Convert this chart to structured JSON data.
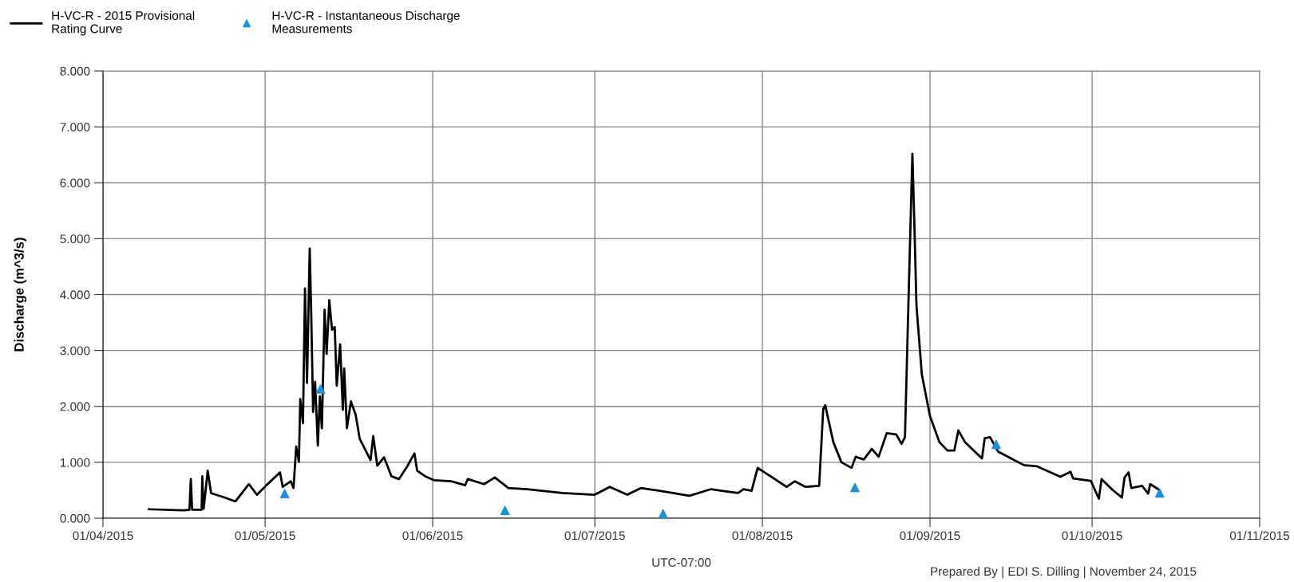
{
  "chart_data": {
    "type": "line",
    "ylabel": "Discharge (m^3/s)",
    "xlabel": "UTC-07:00",
    "legend": "top left",
    "grid": true,
    "annotations": [
      "Prepared By | EDI S. Dilling | November 24, 2015"
    ],
    "xlim": [
      "2015-04-01",
      "2015-11-01"
    ],
    "xticks": [
      {
        "value": "2015-04-01",
        "label": "01/04/2015"
      },
      {
        "value": "2015-05-01",
        "label": "01/05/2015"
      },
      {
        "value": "2015-06-01",
        "label": "01/06/2015"
      },
      {
        "value": "2015-07-01",
        "label": "01/07/2015"
      },
      {
        "value": "2015-08-01",
        "label": "01/08/2015"
      },
      {
        "value": "2015-09-01",
        "label": "01/09/2015"
      },
      {
        "value": "2015-10-01",
        "label": "01/10/2015"
      },
      {
        "value": "2015-11-01",
        "label": "01/11/2015"
      }
    ],
    "ylim": [
      0,
      8
    ],
    "yticks": [
      {
        "value": 0,
        "label": "0.000"
      },
      {
        "value": 1,
        "label": "1.000"
      },
      {
        "value": 2,
        "label": "2.000"
      },
      {
        "value": 3,
        "label": "3.000"
      },
      {
        "value": 4,
        "label": "4.000"
      },
      {
        "value": 5,
        "label": "5.000"
      },
      {
        "value": 6,
        "label": "6.000"
      },
      {
        "value": 7,
        "label": "7.000"
      },
      {
        "value": 8,
        "label": "8.000"
      }
    ],
    "series": [
      {
        "name": "H-VC-R - 2015 Provisional Rating Curve",
        "color": "#000000",
        "marker": "none",
        "line_style": "solid",
        "x": [
          "2015-04-09T12:00",
          "2015-04-16T00:00",
          "2015-04-17T00:00",
          "2015-04-17T06:00",
          "2015-04-17T12:00",
          "2015-04-19T06:00",
          "2015-04-19T09:00",
          "2015-04-19T15:00",
          "2015-04-20T00:00",
          "2015-04-20T09:00",
          "2015-04-21T00:00",
          "2015-04-23T12:00",
          "2015-04-25T12:00",
          "2015-04-28T00:00",
          "2015-04-29T12:00",
          "2015-05-01T06:00",
          "2015-05-03T18:00",
          "2015-05-04T06:00",
          "2015-05-05T18:00",
          "2015-05-06T06:00",
          "2015-05-06T18:00",
          "2015-05-07T06:00",
          "2015-05-07T12:00",
          "2015-05-08T00:00",
          "2015-05-08T09:00",
          "2015-05-08T18:00",
          "2015-05-09T06:00",
          "2015-05-09T12:00",
          "2015-05-09T21:00",
          "2015-05-10T06:00",
          "2015-05-10T18:00",
          "2015-05-11T03:00",
          "2015-05-11T12:00",
          "2015-05-12T00:00",
          "2015-05-12T09:00",
          "2015-05-12T21:00",
          "2015-05-13T09:00",
          "2015-05-13T21:00",
          "2015-05-14T06:00",
          "2015-05-14T21:00",
          "2015-05-15T09:00",
          "2015-05-15T15:00",
          "2015-05-16T03:00",
          "2015-05-16T21:00",
          "2015-05-17T18:00",
          "2015-05-18T12:00",
          "2015-05-20T12:00",
          "2015-05-21T00:00",
          "2015-05-21T18:00",
          "2015-05-23T00:00",
          "2015-05-24T09:00",
          "2015-05-25T18:00",
          "2015-05-27T06:00",
          "2015-05-28T15:00",
          "2015-05-29T03:00",
          "2015-05-30T15:00",
          "2015-06-01T06:00",
          "2015-06-04T12:00",
          "2015-06-07T00:00",
          "2015-06-07T12:00",
          "2015-06-10T12:00",
          "2015-06-12T12:00",
          "2015-06-15T00:00",
          "2015-06-18T12:00",
          "2015-06-25T00:00",
          "2015-07-01T00:00",
          "2015-07-03T18:00",
          "2015-07-07T00:00",
          "2015-07-09T12:00",
          "2015-07-13T00:00",
          "2015-07-18T12:00",
          "2015-07-22T12:00",
          "2015-07-24T12:00",
          "2015-07-27T12:00",
          "2015-07-28T12:00",
          "2015-07-30T00:00",
          "2015-07-31T03:00",
          "2015-08-02T12:00",
          "2015-08-05T12:00",
          "2015-08-07T00:00",
          "2015-08-09T00:00",
          "2015-08-11T12:00",
          "2015-08-12T06:00",
          "2015-08-12T15:00",
          "2015-08-14T03:00",
          "2015-08-15T15:00",
          "2015-08-17T12:00",
          "2015-08-18T06:00",
          "2015-08-19T18:00",
          "2015-08-21T06:00",
          "2015-08-22T12:00",
          "2015-08-24T00:00",
          "2015-08-25T18:00",
          "2015-08-26T18:00",
          "2015-08-27T09:00",
          "2015-08-27T21:00",
          "2015-08-28T18:00",
          "2015-08-29T03:00",
          "2015-08-29T12:00",
          "2015-08-30T12:00",
          "2015-09-01T00:00",
          "2015-09-02T18:00",
          "2015-09-04T06:00",
          "2015-09-05T12:00",
          "2015-09-06T06:00",
          "2015-09-07T12:00",
          "2015-09-10T15:00",
          "2015-09-11T03:00",
          "2015-09-12T03:00",
          "2015-09-13T15:00",
          "2015-09-16T00:00",
          "2015-09-18T09:00",
          "2015-09-20T18:00",
          "2015-09-25T03:00",
          "2015-09-27T00:00",
          "2015-09-27T12:00",
          "2015-09-30T18:00",
          "2015-10-02T06:00",
          "2015-10-02T18:00",
          "2015-10-04T18:00",
          "2015-10-06T12:00",
          "2015-10-07T00:00",
          "2015-10-07T18:00",
          "2015-10-08T06:00",
          "2015-10-10T06:00",
          "2015-10-11T09:00",
          "2015-10-11T18:00",
          "2015-10-13T09:00"
        ],
        "values": [
          0.16,
          0.14,
          0.15,
          0.7,
          0.15,
          0.15,
          0.75,
          0.17,
          0.5,
          0.85,
          0.45,
          0.37,
          0.3,
          0.61,
          0.42,
          0.59,
          0.82,
          0.56,
          0.66,
          0.54,
          1.28,
          1.01,
          2.13,
          1.7,
          4.11,
          2.42,
          4.82,
          3.8,
          1.9,
          2.44,
          1.3,
          2.18,
          1.61,
          3.73,
          2.94,
          3.9,
          3.37,
          3.42,
          2.37,
          3.11,
          1.94,
          2.68,
          1.61,
          2.09,
          1.85,
          1.42,
          1.04,
          1.47,
          0.94,
          1.09,
          0.75,
          0.7,
          0.92,
          1.16,
          0.85,
          0.75,
          0.68,
          0.66,
          0.59,
          0.7,
          0.61,
          0.73,
          0.54,
          0.52,
          0.45,
          0.42,
          0.56,
          0.42,
          0.54,
          0.49,
          0.4,
          0.52,
          0.49,
          0.45,
          0.52,
          0.49,
          0.9,
          0.75,
          0.56,
          0.66,
          0.56,
          0.58,
          1.95,
          2.02,
          1.36,
          1.0,
          0.9,
          1.1,
          1.05,
          1.24,
          1.1,
          1.52,
          1.5,
          1.33,
          1.45,
          3.33,
          6.52,
          5.24,
          3.81,
          2.57,
          1.83,
          1.36,
          1.21,
          1.21,
          1.57,
          1.36,
          1.07,
          1.43,
          1.45,
          1.19,
          1.07,
          0.95,
          0.93,
          0.74,
          0.83,
          0.71,
          0.67,
          0.35,
          0.7,
          0.51,
          0.37,
          0.73,
          0.82,
          0.54,
          0.58,
          0.44,
          0.61,
          0.51
        ]
      },
      {
        "name": "H-VC-R - Instantaneous Discharge Measurements",
        "type": "scatter",
        "color": "#1e90dc",
        "marker": "triangle",
        "x": [
          "2015-05-04T15:00",
          "2015-05-11T06:00",
          "2015-06-14T09:00",
          "2015-07-13T15:00",
          "2015-08-18T03:00",
          "2015-09-13T06:00",
          "2015-10-13T12:00"
        ],
        "values": [
          0.44,
          2.31,
          0.14,
          0.08,
          0.55,
          1.32,
          0.45
        ]
      }
    ]
  }
}
